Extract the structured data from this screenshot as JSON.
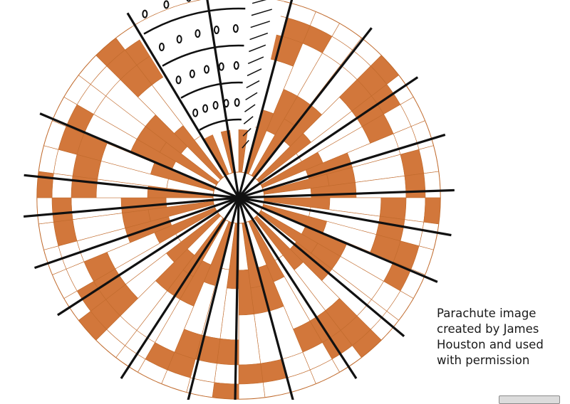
{
  "figure": {
    "caption_lines": [
      "Parachute image",
      "created by James",
      "Houston and used",
      "with permission"
    ]
  },
  "colors": {
    "background": "#ffffff",
    "fill": "#d2773b",
    "outline": "#c06a2c",
    "ink": "#111111"
  },
  "icons": {
    "license_badge": "creative-commons-badge-icon"
  }
}
